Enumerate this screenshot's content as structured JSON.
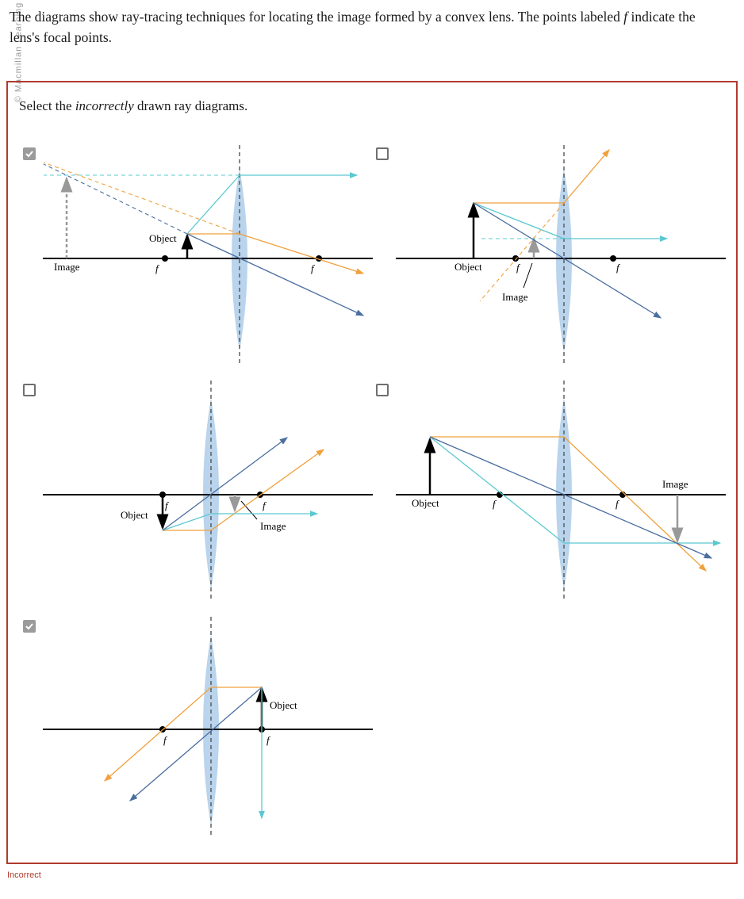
{
  "watermark": "© Macmillan Learning",
  "prompt": {
    "before_f": "The diagrams show ray-tracing techniques for locating the image formed by a convex lens. The points labeled ",
    "f": "f",
    "after_f": " indicate the lens's focal points."
  },
  "instruction": {
    "before": "Select the ",
    "emphasis": "incorrectly",
    "after": " drawn ray diagrams."
  },
  "options": [
    {
      "checked": true,
      "labels": {
        "object": "Object",
        "image": "Image",
        "f_left": "f",
        "f_right": "f"
      }
    },
    {
      "checked": false,
      "labels": {
        "object": "Object",
        "image": "Image",
        "f_left": "f",
        "f_right": "f"
      }
    },
    {
      "checked": false,
      "labels": {
        "object": "Object",
        "image": "Image",
        "f_left": "f",
        "f_right": "f"
      }
    },
    {
      "checked": false,
      "labels": {
        "object": "Object",
        "image": "Image",
        "f_left": "f",
        "f_right": "f"
      }
    },
    {
      "checked": true,
      "labels": {
        "object": "Object",
        "f_left": "f",
        "f_right": "f"
      }
    }
  ],
  "status": "Incorrect",
  "colors": {
    "orange_ray": "#f0a03c",
    "cyan_ray": "#5bc8d0",
    "blue_ray": "#4a6ea0",
    "lens": "#b9d4ec",
    "frame": "#b03a2e",
    "status": "#b03a2e"
  }
}
